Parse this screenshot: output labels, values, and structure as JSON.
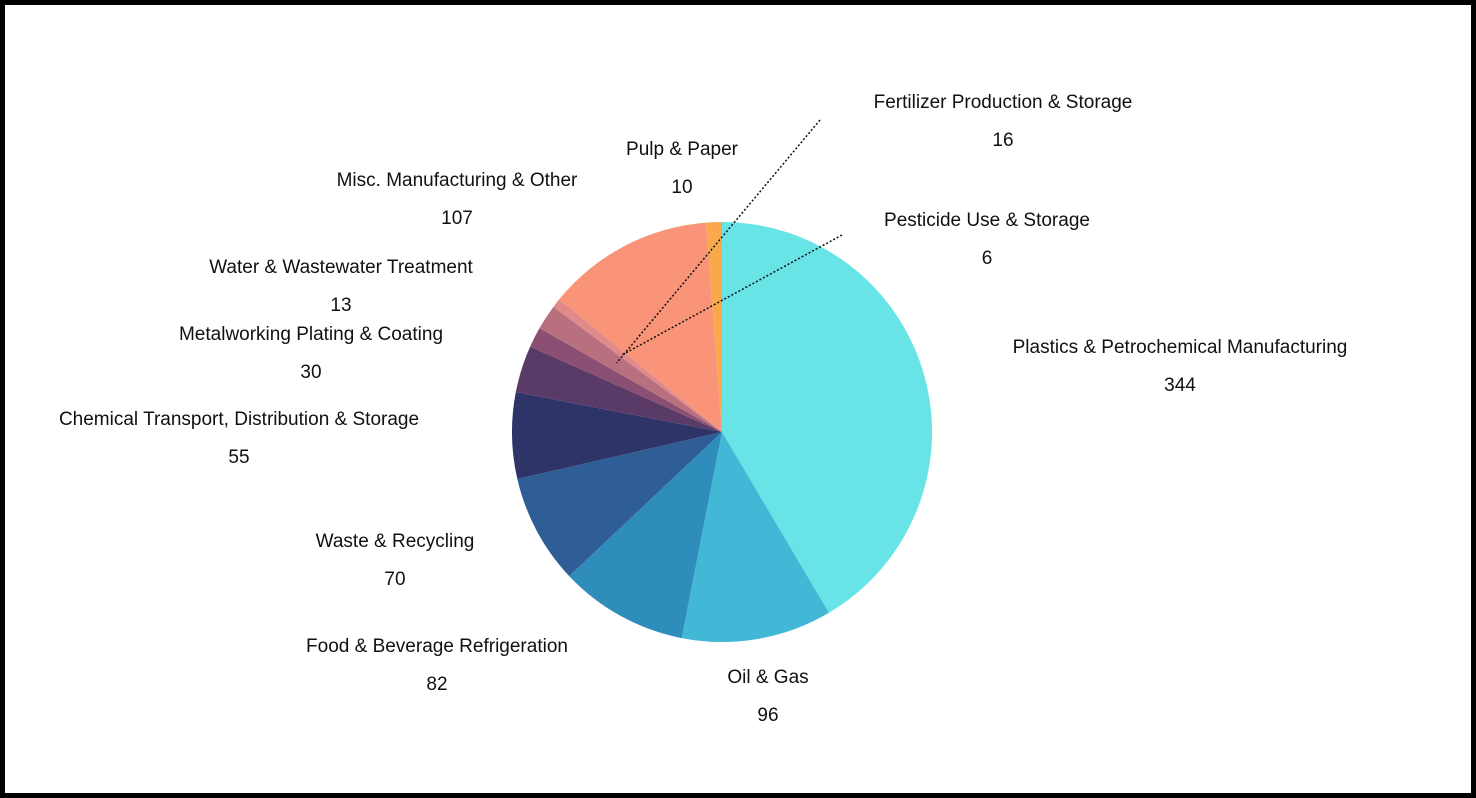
{
  "chart_data": {
    "type": "pie",
    "categories": [
      "Plastics & Petrochemical Manufacturing",
      "Oil & Gas",
      "Food & Beverage Refrigeration",
      "Waste & Recycling",
      "Chemical Transport, Distribution & Storage",
      "Metalworking Plating & Coating",
      "Water & Wastewater Treatment",
      "Fertilizer Production & Storage",
      "Pesticide Use & Storage",
      "Misc. Manufacturing & Other",
      "Pulp & Paper"
    ],
    "values": [
      344,
      96,
      82,
      70,
      55,
      30,
      13,
      16,
      6,
      107,
      10
    ],
    "colors": [
      "#68e3e6",
      "#42b8d6",
      "#2e8dbb",
      "#2f5e96",
      "#2f3468",
      "#5a3a66",
      "#8a4f72",
      "#b8707e",
      "#e08a8a",
      "#fa9478",
      "#f9a94b"
    ]
  }
}
